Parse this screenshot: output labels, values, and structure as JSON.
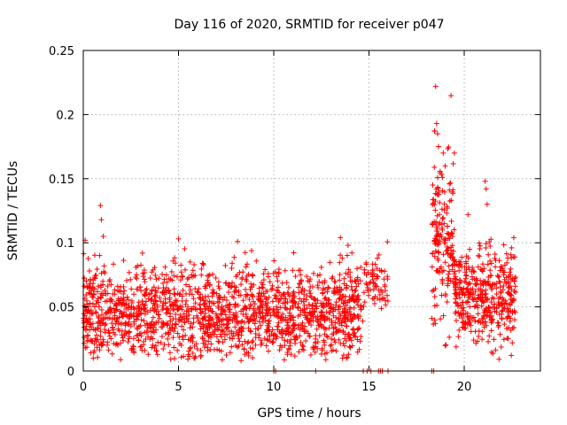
{
  "chart_data": {
    "type": "scatter",
    "title": "Day 116 of 2020, SRMTID for receiver p047",
    "xlabel": "GPS time / hours",
    "ylabel": "SRMTID / TECUs",
    "xlim": [
      0,
      24
    ],
    "ylim": [
      0,
      0.25
    ],
    "xticks": [
      0,
      5,
      10,
      15,
      20
    ],
    "xtick_labels": [
      "0",
      "5",
      "10",
      "15",
      "20"
    ],
    "yticks": [
      0,
      0.05,
      0.1,
      0.15,
      0.2,
      0.25
    ],
    "ytick_labels": [
      "0",
      "0.05",
      "0.1",
      "0.15",
      "0.2",
      "0.25"
    ],
    "grid": true,
    "marker": "+",
    "color": "#ff0000",
    "segments": [
      {
        "x_start": 0.0,
        "x_end": 14.6,
        "mean": 0.045,
        "spread": 0.018,
        "n": 1700
      },
      {
        "x_start": 14.6,
        "x_end": 16.0,
        "mean": 0.068,
        "spread": 0.012,
        "n": 70
      },
      {
        "x_start": 18.3,
        "x_end": 19.5,
        "mean": 0.1,
        "spread": 0.03,
        "n": 180
      },
      {
        "x_start": 19.5,
        "x_end": 22.7,
        "mean": 0.058,
        "spread": 0.018,
        "n": 420
      }
    ],
    "peaks": [
      {
        "x": 0.1,
        "y": 0.102
      },
      {
        "x": 0.9,
        "y": 0.129
      },
      {
        "x": 0.95,
        "y": 0.118
      },
      {
        "x": 1.05,
        "y": 0.105
      },
      {
        "x": 5.0,
        "y": 0.103
      },
      {
        "x": 8.1,
        "y": 0.101
      },
      {
        "x": 13.5,
        "y": 0.104
      },
      {
        "x": 13.9,
        "y": 0.098
      },
      {
        "x": 18.5,
        "y": 0.222
      },
      {
        "x": 18.55,
        "y": 0.193
      },
      {
        "x": 18.6,
        "y": 0.185
      },
      {
        "x": 18.65,
        "y": 0.175
      },
      {
        "x": 18.9,
        "y": 0.17
      },
      {
        "x": 19.0,
        "y": 0.16
      },
      {
        "x": 20.2,
        "y": 0.122
      },
      {
        "x": 21.1,
        "y": 0.148
      },
      {
        "x": 21.15,
        "y": 0.142
      },
      {
        "x": 21.2,
        "y": 0.13
      },
      {
        "x": 22.6,
        "y": 0.104
      }
    ],
    "zero_values_x": [
      10.0,
      10.1,
      12.2,
      14.7,
      14.9,
      15.1,
      15.5,
      15.6,
      15.7,
      16.0,
      18.3,
      18.4
    ]
  }
}
